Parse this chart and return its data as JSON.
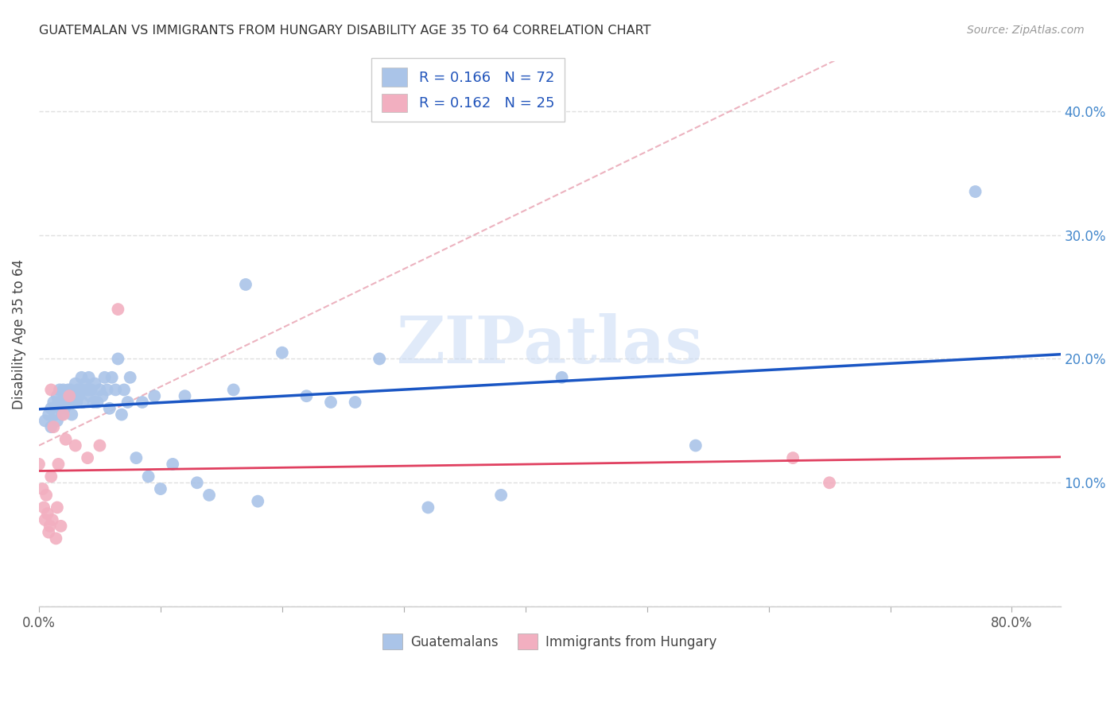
{
  "title": "GUATEMALAN VS IMMIGRANTS FROM HUNGARY DISABILITY AGE 35 TO 64 CORRELATION CHART",
  "source_text": "Source: ZipAtlas.com",
  "ylabel": "Disability Age 35 to 64",
  "xlim": [
    0.0,
    0.84
  ],
  "ylim": [
    0.0,
    0.44
  ],
  "x_tick_positions": [
    0.0,
    0.1,
    0.2,
    0.3,
    0.4,
    0.5,
    0.6,
    0.7,
    0.8
  ],
  "x_tick_labels": [
    "0.0%",
    "",
    "",
    "",
    "",
    "",
    "",
    "",
    "80.0%"
  ],
  "y_tick_positions": [
    0.0,
    0.1,
    0.2,
    0.3,
    0.4
  ],
  "y_tick_labels_right": [
    "",
    "10.0%",
    "20.0%",
    "30.0%",
    "40.0%"
  ],
  "blue_color": "#aac4e8",
  "pink_color": "#f2afc0",
  "blue_line_color": "#1a56c4",
  "pink_line_color": "#e04060",
  "dash_color": "#e8a0b0",
  "label1": "Guatemalans",
  "label2": "Immigrants from Hungary",
  "watermark_text": "ZIPatlas",
  "grid_color": "#e0e0e0",
  "guatemalan_x": [
    0.005,
    0.008,
    0.01,
    0.01,
    0.012,
    0.013,
    0.015,
    0.015,
    0.016,
    0.017,
    0.018,
    0.019,
    0.02,
    0.02,
    0.021,
    0.022,
    0.023,
    0.024,
    0.025,
    0.026,
    0.027,
    0.028,
    0.03,
    0.03,
    0.031,
    0.032,
    0.033,
    0.035,
    0.035,
    0.036,
    0.038,
    0.04,
    0.041,
    0.042,
    0.043,
    0.045,
    0.046,
    0.048,
    0.05,
    0.052,
    0.054,
    0.056,
    0.058,
    0.06,
    0.063,
    0.065,
    0.068,
    0.07,
    0.073,
    0.075,
    0.08,
    0.085,
    0.09,
    0.095,
    0.1,
    0.11,
    0.12,
    0.13,
    0.14,
    0.16,
    0.17,
    0.18,
    0.2,
    0.22,
    0.24,
    0.26,
    0.28,
    0.32,
    0.38,
    0.43,
    0.54,
    0.77
  ],
  "guatemalan_y": [
    0.15,
    0.155,
    0.145,
    0.16,
    0.165,
    0.155,
    0.17,
    0.15,
    0.165,
    0.175,
    0.16,
    0.155,
    0.165,
    0.175,
    0.16,
    0.17,
    0.165,
    0.175,
    0.165,
    0.175,
    0.155,
    0.165,
    0.17,
    0.18,
    0.165,
    0.175,
    0.17,
    0.185,
    0.175,
    0.165,
    0.18,
    0.175,
    0.185,
    0.17,
    0.175,
    0.165,
    0.18,
    0.165,
    0.175,
    0.17,
    0.185,
    0.175,
    0.16,
    0.185,
    0.175,
    0.2,
    0.155,
    0.175,
    0.165,
    0.185,
    0.12,
    0.165,
    0.105,
    0.17,
    0.095,
    0.115,
    0.17,
    0.1,
    0.09,
    0.175,
    0.26,
    0.085,
    0.205,
    0.17,
    0.165,
    0.165,
    0.2,
    0.08,
    0.09,
    0.185,
    0.13,
    0.335
  ],
  "hungary_x": [
    0.0,
    0.003,
    0.004,
    0.005,
    0.006,
    0.007,
    0.008,
    0.009,
    0.01,
    0.01,
    0.011,
    0.012,
    0.014,
    0.015,
    0.016,
    0.018,
    0.02,
    0.022,
    0.025,
    0.03,
    0.04,
    0.05,
    0.065,
    0.62,
    0.65
  ],
  "hungary_y": [
    0.115,
    0.095,
    0.08,
    0.07,
    0.09,
    0.075,
    0.06,
    0.065,
    0.105,
    0.175,
    0.07,
    0.145,
    0.055,
    0.08,
    0.115,
    0.065,
    0.155,
    0.135,
    0.17,
    0.13,
    0.12,
    0.13,
    0.24,
    0.12,
    0.1
  ]
}
